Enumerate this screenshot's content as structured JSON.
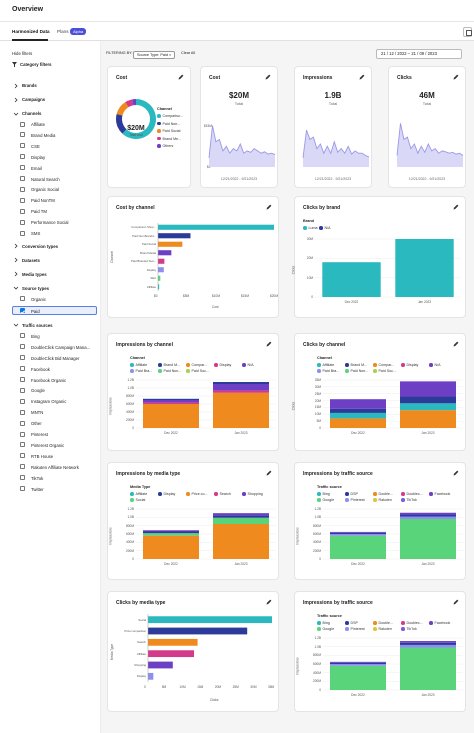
{
  "header": {
    "title": "Overview"
  },
  "tabs": [
    {
      "label": "Harmonized Data"
    },
    {
      "label": "Plans"
    }
  ],
  "alpha_badge": "Alpha",
  "date_range": {
    "start": "21 / 12 / 2022",
    "sep": "–",
    "end": "21 / 09 / 2023"
  },
  "filters": {
    "hide_label": "Hide filters",
    "category_label": "Category filters",
    "filtering_by": "FILTERING BY:",
    "chip": "Source Type: Paid",
    "clear": "Clear All"
  },
  "sidebar": {
    "groups": [
      {
        "label": "Brands"
      },
      {
        "label": "Campaigns"
      },
      {
        "label": "Channels"
      },
      {
        "label": "Conversion types"
      },
      {
        "label": "Datasets"
      },
      {
        "label": "Media types"
      },
      {
        "label": "Source types"
      },
      {
        "label": "Traffic sources"
      }
    ],
    "channels": [
      "Affiliate",
      "Brand Media",
      "CSE",
      "Display",
      "Email",
      "Natural Search",
      "Organic Social",
      "Paid NonTM",
      "Paid TM",
      "Performance Social",
      "SMS"
    ],
    "source_types": [
      "Organic",
      "Paid"
    ],
    "traffic_sources": [
      "Bing",
      "DoubleClick Campaign Mana...",
      "DoubleClick Bid Manager",
      "Facebook",
      "Facebook Organic",
      "Google",
      "Instagram Organic",
      "MNTN",
      "Other",
      "Pinterest",
      "Pinterest Organic",
      "RTB House",
      "Rakuten Affiliate Network",
      "TikTok",
      "Twitter"
    ]
  },
  "colors": {
    "teal": "#2bb9c0",
    "navy": "#2c3a9a",
    "orange": "#ef8a1e",
    "purple": "#6c3fc4",
    "magenta": "#d43a8c",
    "green": "#5ad47a",
    "periwinkle": "#8c8ff0",
    "line": "#9b98e8"
  },
  "cost_donut": {
    "title": "Cost",
    "value": "$20M",
    "sub": "Total cost",
    "legend_title": "Channel",
    "legend": [
      "Compariso...",
      "Paid Non...",
      "Paid Social",
      "Brand Me...",
      "Others"
    ]
  },
  "kpis": [
    {
      "title": "Cost",
      "value": "$20M",
      "sub": "Total",
      "date": "12/21/2022 - 9/21/2023",
      "ymax": "$15M",
      "ymin": "$0"
    },
    {
      "title": "Impressions",
      "value": "1.9B",
      "sub": "Total",
      "date": "12/21/2022 - 9/21/2023",
      "ymax": "",
      "ymin": ""
    },
    {
      "title": "Clicks",
      "value": "46M",
      "sub": "Total",
      "date": "12/21/2022 - 9/21/2023",
      "ymax": "",
      "ymin": ""
    }
  ],
  "cost_by_channel": {
    "title": "Cost by channel",
    "ylabel": "Channel",
    "xlabel": "Cost",
    "xticks": [
      "$0",
      "$5M",
      "$10M",
      "$15M",
      "$20M"
    ],
    "chart_data": {
      "type": "bar",
      "categories": [
        "Comparison Shop...",
        "Paid Non-Brandd...",
        "Paid Social",
        "Brand Media",
        "Paid Branded Sea...",
        "Display",
        "SEA",
        "Affiliate"
      ],
      "values": [
        20,
        5.6,
        4.2,
        2.3,
        1.1,
        1.0,
        0.4,
        0.2
      ],
      "xlim": [
        0,
        20
      ]
    }
  },
  "clicks_by_brand": {
    "title": "Clicks by brand",
    "legend_title": "Brand",
    "legend": [
      "Luma",
      "N/A"
    ],
    "ylabel": "Clicks",
    "yticks": [
      "0",
      "10M",
      "20M",
      "30M"
    ],
    "chart_data": {
      "type": "bar",
      "categories": [
        "Dec 2022",
        "Jan 2023"
      ],
      "values": [
        21,
        35
      ],
      "ylim": [
        0,
        35
      ]
    }
  },
  "impressions_by_channel": {
    "title": "Impressions by channel",
    "legend_title": "Channel",
    "legend": [
      "Affiliate",
      "Brand M...",
      "Compar...",
      "Display",
      "N/A",
      "Paid Bra...",
      "Paid Non...",
      "Paid Soc..."
    ],
    "ylabel": "Impressions",
    "yticks": [
      "0",
      "200M",
      "400M",
      "600M",
      "800M",
      "1.0B",
      "1.2B"
    ],
    "chart_data": {
      "type": "bar",
      "categories": [
        "Dec 2022",
        "Jan 2023"
      ],
      "series": [
        {
          "name": "Compar...",
          "values": [
            600,
            880
          ]
        },
        {
          "name": "Display",
          "values": [
            40,
            60
          ]
        },
        {
          "name": "Paid Soc...",
          "values": [
            60,
            160
          ]
        },
        {
          "name": "Brand M...",
          "values": [
            30,
            50
          ]
        }
      ],
      "ylim": [
        0,
        1200
      ]
    }
  },
  "clicks_by_channel": {
    "title": "Clicks by channel",
    "legend_title": "Channel",
    "legend": [
      "Affiliate",
      "Brand M...",
      "Compar...",
      "Display",
      "N/A",
      "Paid Bra...",
      "Paid Non...",
      "Paid Soc..."
    ],
    "ylabel": "Clicks",
    "yticks": [
      "0",
      "5M",
      "10M",
      "15M",
      "20M",
      "25M",
      "30M",
      "35M"
    ],
    "chart_data": {
      "type": "bar",
      "categories": [
        "Dec 2022",
        "Jan 2023"
      ],
      "series": [
        {
          "name": "Compar...",
          "values": [
            7,
            13
          ]
        },
        {
          "name": "Paid Non...",
          "values": [
            4,
            5
          ]
        },
        {
          "name": "Brand M...",
          "values": [
            3,
            5
          ]
        },
        {
          "name": "Paid Soc...",
          "values": [
            7,
            11
          ]
        }
      ],
      "ylim": [
        0,
        35
      ]
    }
  },
  "impressions_by_media": {
    "title": "Impressions by media type",
    "legend_title": "Media Type",
    "legend": [
      "Affiliate",
      "Display",
      "Price co...",
      "Search",
      "Shopping",
      "Social"
    ],
    "ylabel": "Impressions",
    "yticks": [
      "0",
      "200M",
      "400M",
      "600M",
      "800M",
      "1.0B",
      "1.2B"
    ],
    "chart_data": {
      "type": "bar",
      "categories": [
        "Dec 2022",
        "Jan 2023"
      ],
      "series": [
        {
          "name": "Price co...",
          "values": [
            560,
            840
          ]
        },
        {
          "name": "Social",
          "values": [
            60,
            150
          ]
        },
        {
          "name": "Display",
          "values": [
            40,
            60
          ]
        },
        {
          "name": "Search",
          "values": [
            30,
            50
          ]
        }
      ],
      "ylim": [
        0,
        1200
      ]
    }
  },
  "impressions_by_traffic_1": {
    "title": "Impressions by traffic source",
    "legend_title": "Traffic source",
    "legend": [
      "Bing",
      "DSP",
      "Double...",
      "Doublec...",
      "Facebook",
      "Google",
      "Pinterest",
      "Rakuten",
      "TikTok"
    ],
    "ylabel": "Impressions",
    "yticks": [
      "0",
      "200M",
      "400M",
      "600M",
      "800M",
      "1.0B",
      "1.2B"
    ],
    "chart_data": {
      "type": "bar",
      "categories": [
        "Dec 2022",
        "Jan 2023"
      ],
      "series": [
        {
          "name": "Google",
          "values": [
            560,
            960
          ]
        },
        {
          "name": "Facebook",
          "values": [
            40,
            60
          ]
        },
        {
          "name": "DSP",
          "values": [
            30,
            50
          ]
        },
        {
          "name": "Bing",
          "values": [
            20,
            40
          ]
        }
      ],
      "ylim": [
        0,
        1200
      ]
    }
  },
  "clicks_by_media": {
    "title": "Clicks by media type",
    "ylabel": "Media Type",
    "xlabel": "Clicks",
    "xticks": [
      "0",
      "5M",
      "10M",
      "15M",
      "20M",
      "25M",
      "30M",
      "35M"
    ],
    "chart_data": {
      "type": "bar",
      "categories": [
        "Social",
        "Price comparison",
        "Search",
        "Affiliate",
        "Shopping",
        "Display"
      ],
      "values": [
        35,
        28,
        14,
        13,
        7,
        1.5
      ],
      "xlim": [
        0,
        35
      ]
    }
  },
  "impressions_by_traffic_2": {
    "title": "Impressions by traffic source",
    "legend_title": "Traffic source",
    "legend": [
      "Bing",
      "DSP",
      "Double...",
      "Doublec...",
      "Facebook",
      "Google",
      "Pinterest",
      "Rakuten",
      "TikTok"
    ],
    "ylabel": "Impressions",
    "yticks": [
      "0",
      "200M",
      "400M",
      "600M",
      "800M",
      "1.0B",
      "1.2B"
    ],
    "chart_data": {
      "type": "bar",
      "categories": [
        "Dec 2022",
        "Jan 2023"
      ],
      "series": [
        {
          "name": "Google",
          "values": [
            560,
            980
          ]
        },
        {
          "name": "Facebook",
          "values": [
            40,
            60
          ]
        },
        {
          "name": "DSP",
          "values": [
            30,
            50
          ]
        },
        {
          "name": "Bing",
          "values": [
            20,
            40
          ]
        }
      ],
      "ylim": [
        0,
        1200
      ]
    }
  }
}
